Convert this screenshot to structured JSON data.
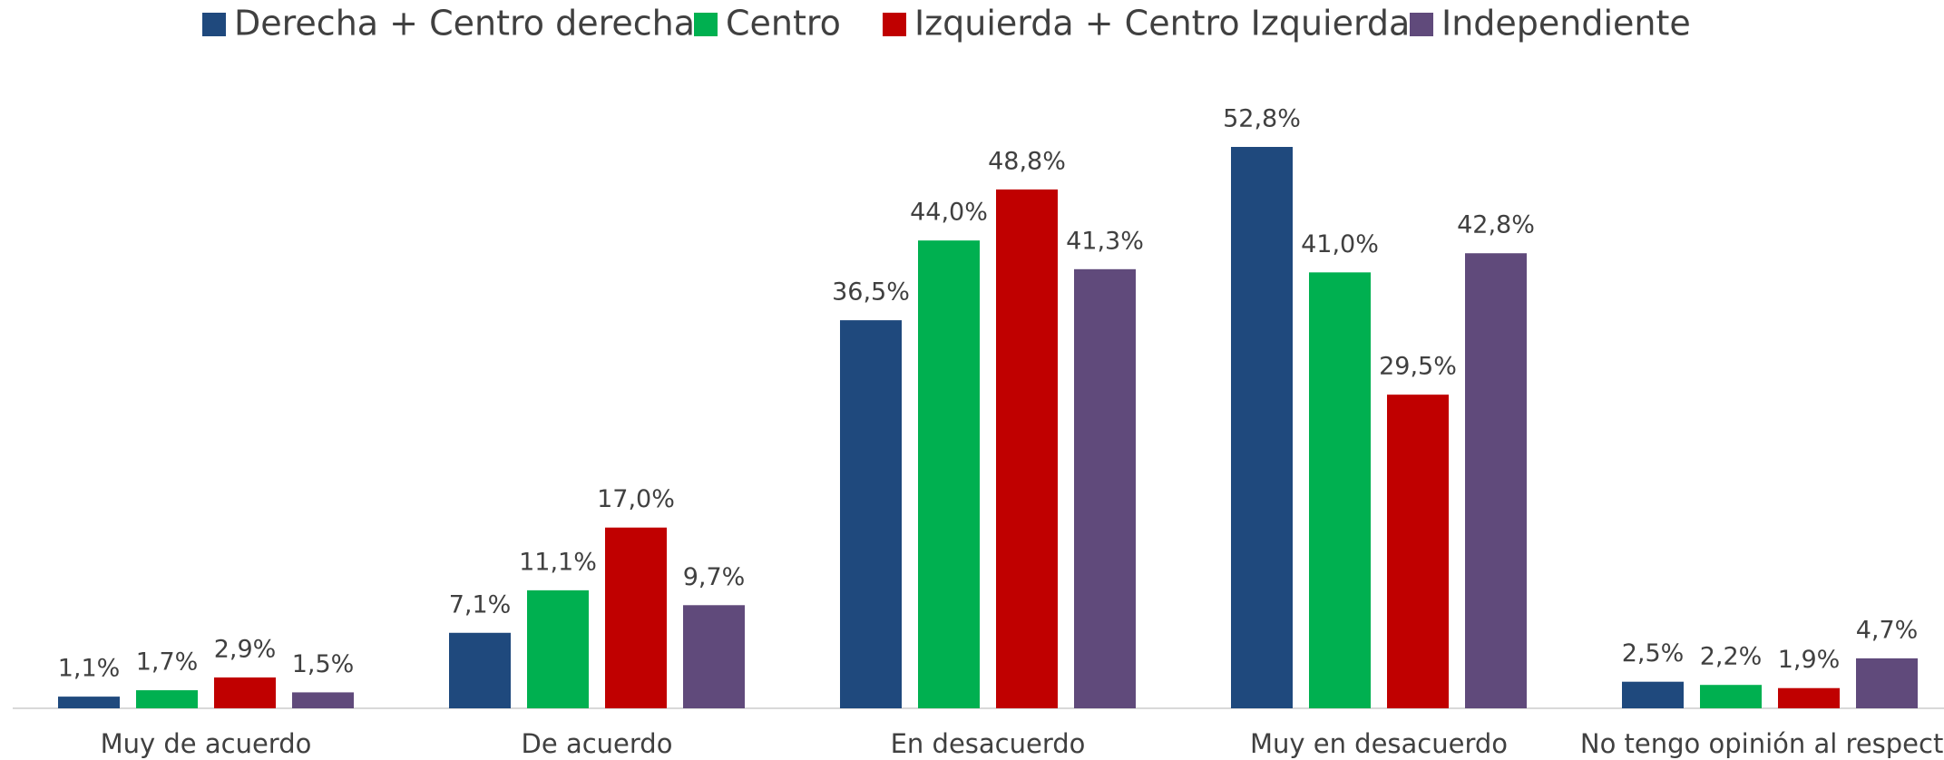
{
  "chart_data": {
    "type": "bar",
    "categories": [
      "Muy de acuerdo",
      "De acuerdo",
      "En desacuerdo",
      "Muy en desacuerdo",
      "No tengo opinión al respecto"
    ],
    "series": [
      {
        "name": "Derecha + Centro derecha",
        "color": "#1f497d",
        "values": [
          1.1,
          7.1,
          36.5,
          52.8,
          2.5
        ],
        "value_labels": [
          "1,1%",
          "7,1%",
          "36,5%",
          "52,8%",
          "2,5%"
        ]
      },
      {
        "name": "Centro",
        "color": "#00b050",
        "values": [
          1.7,
          11.1,
          44.0,
          41.0,
          2.2
        ],
        "value_labels": [
          "1,7%",
          "11,1%",
          "44,0%",
          "41,0%",
          "2,2%"
        ]
      },
      {
        "name": "Izquierda + Centro Izquierda",
        "color": "#c00000",
        "values": [
          2.9,
          17.0,
          48.8,
          29.5,
          1.9
        ],
        "value_labels": [
          "2,9%",
          "17,0%",
          "48,8%",
          "29,5%",
          "1,9%"
        ]
      },
      {
        "name": "Independiente",
        "color": "#604a7b",
        "values": [
          1.5,
          9.7,
          41.3,
          42.8,
          4.7
        ],
        "value_labels": [
          "1,5%",
          "9,7%",
          "41,3%",
          "42,8%",
          "4,7%"
        ]
      }
    ],
    "legend": "top"
  }
}
